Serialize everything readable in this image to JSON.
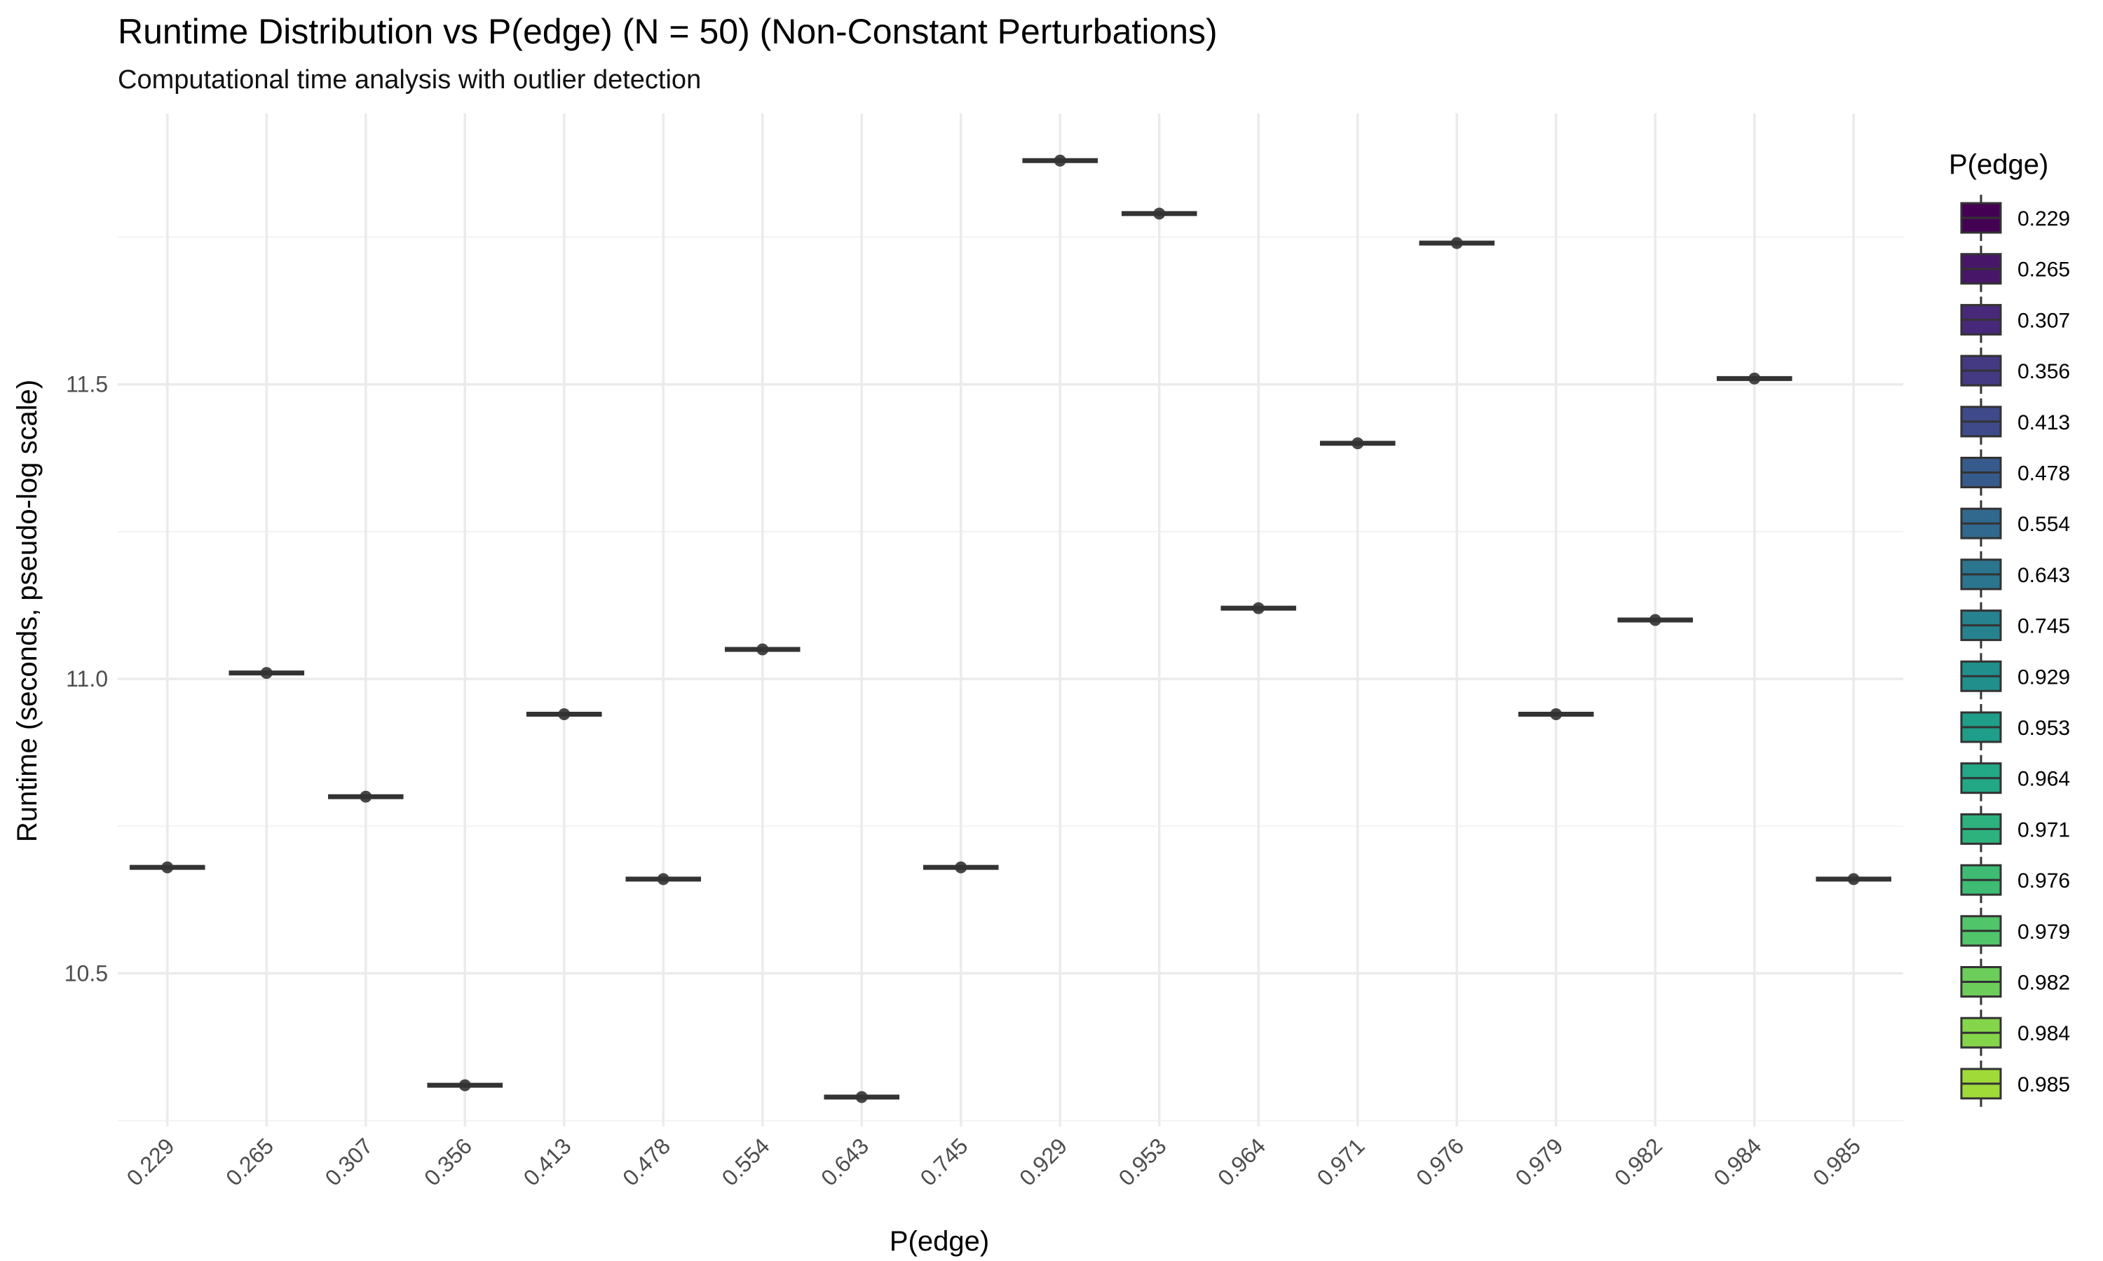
{
  "chart_data": {
    "type": "box",
    "title": "Runtime Distribution vs P(edge) (N = 50) (Non-Constant Perturbations)",
    "subtitle": "Computational time analysis with outlier detection",
    "xlabel": "P(edge)",
    "ylabel": "Runtime (seconds, pseudo-log scale)",
    "categories": [
      "0.229",
      "0.265",
      "0.307",
      "0.356",
      "0.413",
      "0.478",
      "0.554",
      "0.643",
      "0.745",
      "0.929",
      "0.953",
      "0.964",
      "0.971",
      "0.976",
      "0.979",
      "0.982",
      "0.984",
      "0.985"
    ],
    "values": [
      10.68,
      11.01,
      10.8,
      10.31,
      10.94,
      10.66,
      11.05,
      10.29,
      10.68,
      11.88,
      11.79,
      11.12,
      11.4,
      11.74,
      10.94,
      11.1,
      11.51,
      10.66
    ],
    "ylim": [
      10.24,
      11.96
    ],
    "y_ticks": [
      "10.5",
      "11.0",
      "11.5"
    ],
    "y_tick_values": [
      10.5,
      11.0,
      11.5
    ],
    "legend": {
      "title": "P(edge)",
      "placement": "right",
      "entries": [
        "0.229",
        "0.265",
        "0.307",
        "0.356",
        "0.413",
        "0.478",
        "0.554",
        "0.643",
        "0.745",
        "0.929",
        "0.953",
        "0.964",
        "0.971",
        "0.976",
        "0.979",
        "0.982",
        "0.984",
        "0.985"
      ]
    },
    "colors": [
      "#440154",
      "#481668",
      "#482878",
      "#443983",
      "#3e4a89",
      "#375a8c",
      "#31688e",
      "#2b758e",
      "#26828e",
      "#21908c",
      "#1f9e89",
      "#22a884",
      "#2db27d",
      "#3fbc73",
      "#51c56a",
      "#6ccd5a",
      "#85d54a",
      "#a0da39"
    ],
    "grid": true
  }
}
